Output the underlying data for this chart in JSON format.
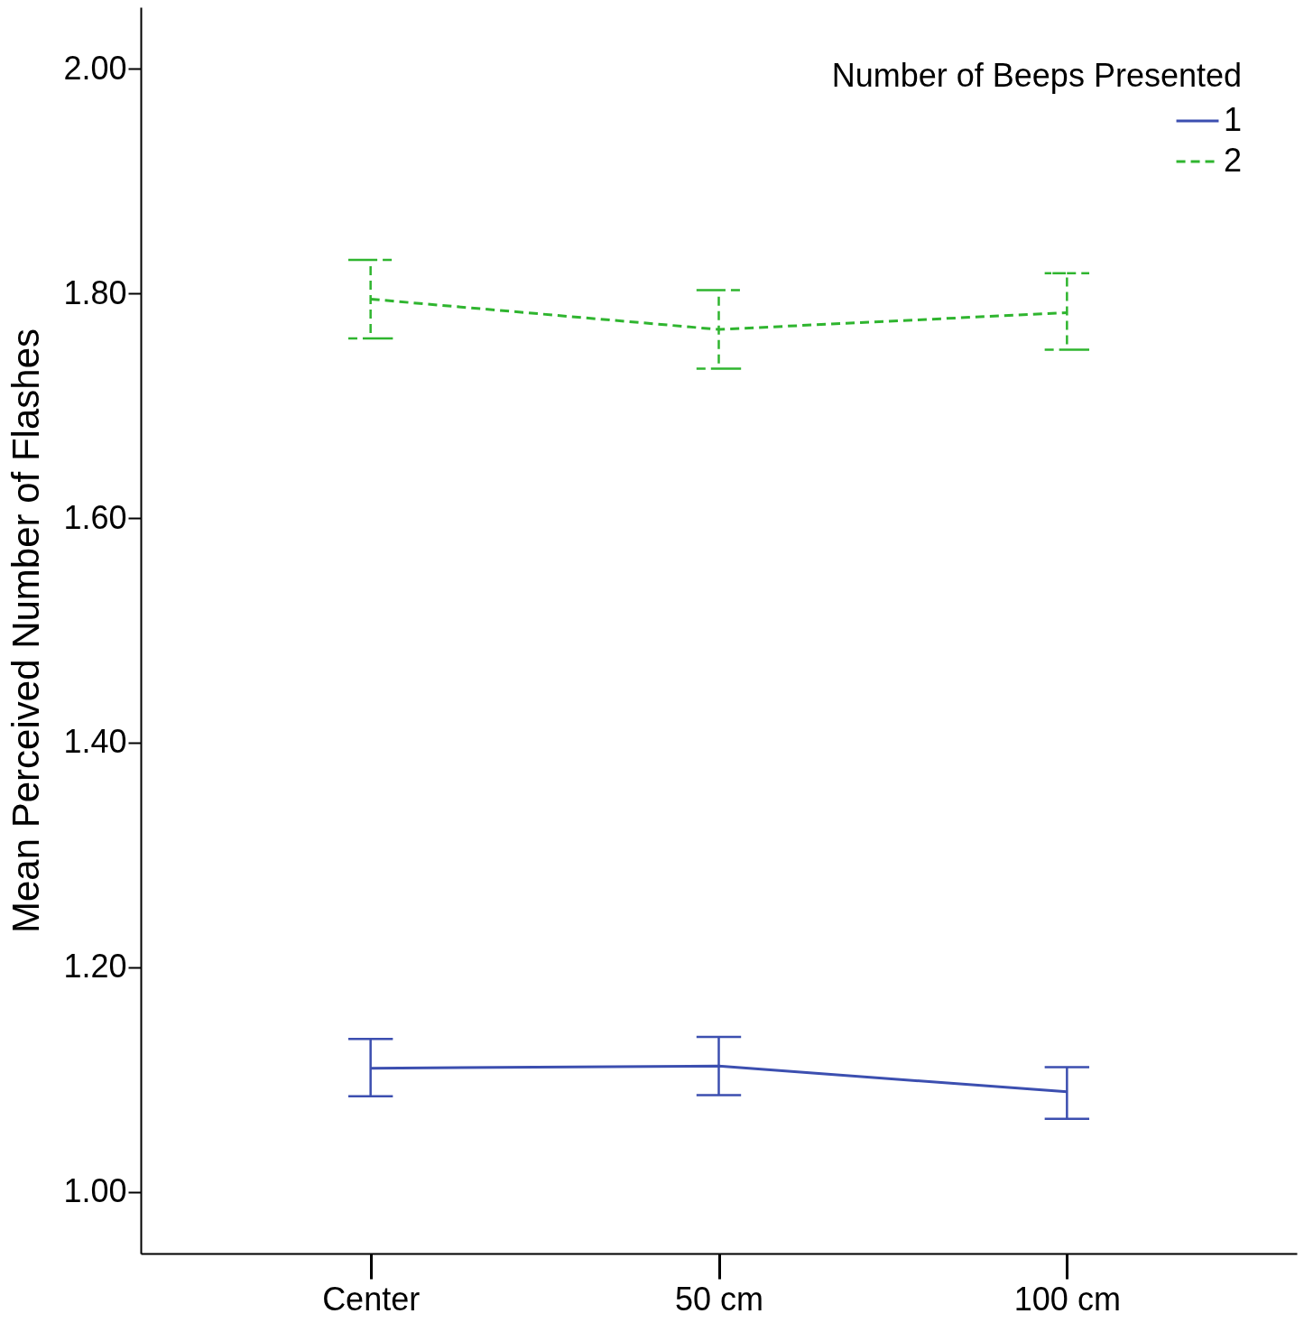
{
  "chart_data": {
    "type": "line",
    "ylabel": "Mean Perceived Number of Flashes",
    "legend_title": "Number of Beeps Presented",
    "categories": [
      "Center",
      "50 cm",
      "100 cm"
    ],
    "series": [
      {
        "name": "1",
        "color": "#3c4fb0",
        "line_style": "solid",
        "values": [
          1.11,
          1.112,
          1.089
        ],
        "errors": [
          [
            1.085,
            1.136
          ],
          [
            1.086,
            1.138
          ],
          [
            1.065,
            1.111
          ]
        ]
      },
      {
        "name": "2",
        "color": "#2fb52f",
        "line_style": "dashed",
        "values": [
          1.795,
          1.768,
          1.783
        ],
        "errors": [
          [
            1.76,
            1.83
          ],
          [
            1.733,
            1.803
          ],
          [
            1.75,
            1.818
          ]
        ]
      }
    ],
    "ylim": [
      0.945,
      2.055
    ],
    "yticks": [
      {
        "value": 1,
        "label": "1.00"
      },
      {
        "value": 1.2,
        "label": "1.20"
      },
      {
        "value": 1.4,
        "label": "1.40"
      },
      {
        "value": 1.6,
        "label": "1.60"
      },
      {
        "value": 1.8,
        "label": "1.80"
      },
      {
        "value": 2,
        "label": "2.00"
      }
    ],
    "grid": false,
    "legend": "top right",
    "marker": "none"
  }
}
